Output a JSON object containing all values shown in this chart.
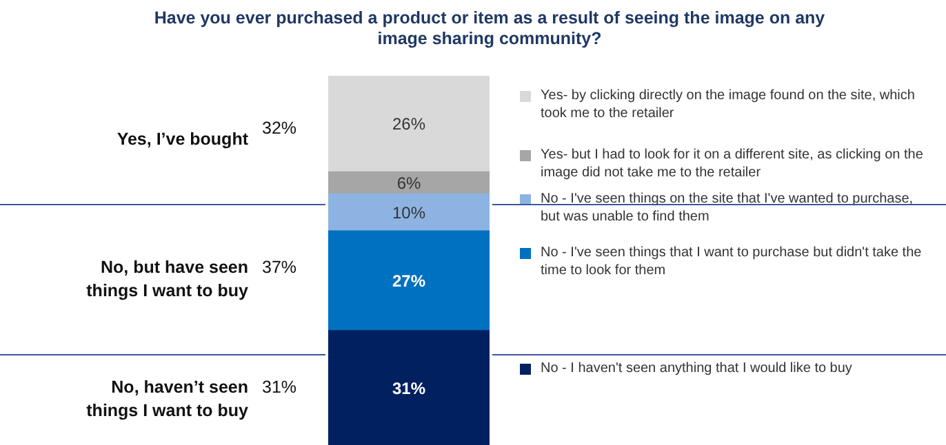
{
  "chart_data": {
    "type": "bar",
    "stacked": true,
    "title": "Have you ever purchased a product or item as a result of seeing the image on any image sharing community?",
    "categories": [
      null
    ],
    "series": [
      {
        "name": "No - I haven't seen anything that I would like to buy",
        "color": "#002060",
        "values": [
          31
        ],
        "value_labels": [
          "31%"
        ]
      },
      {
        "name": "No - I've seen things that I want to purchase but didn't take the time to look for them",
        "color": "#0070c0",
        "values": [
          27
        ],
        "value_labels": [
          "27%"
        ]
      },
      {
        "name": "No - I've seen things on the site that I've wanted to purchase, but was unable to find them",
        "color": "#8db3e2",
        "values": [
          10
        ],
        "value_labels": [
          "10%"
        ]
      },
      {
        "name": "Yes- but I had to look for it on a different site, as clicking on the image did not take me to the retailer",
        "color": "#a6a6a6",
        "values": [
          6
        ],
        "value_labels": [
          "6%"
        ]
      },
      {
        "name": "Yes- by clicking directly on the image found on the site, which took me to the retailer",
        "color": "#d9d9d9",
        "values": [
          26
        ],
        "value_labels": [
          "26%"
        ]
      }
    ],
    "legend": "right",
    "annotations": [
      "Yes, I’ve bought",
      "32%",
      "No, but have seen things I want to buy",
      "37%",
      "No, haven’t seen things I want to buy",
      "31%"
    ]
  }
}
